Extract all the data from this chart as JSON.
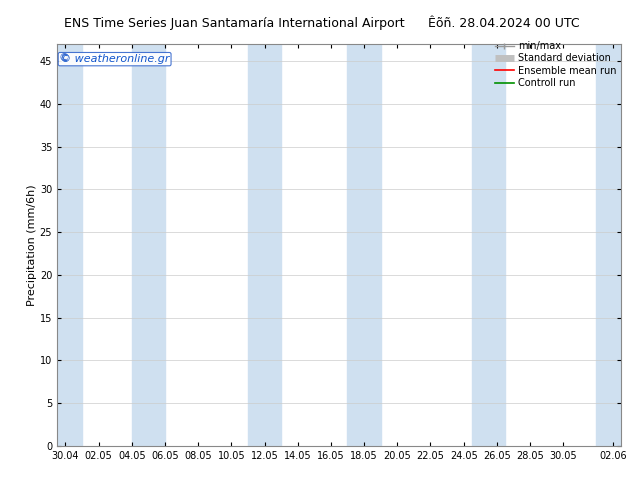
{
  "title_left": "ENS Time Series Juan Santamaría International Airport",
  "title_right": "Êõñ. 28.04.2024 00 UTC",
  "ylabel": "Precipitation (mm/6h)",
  "ylim": [
    0,
    47
  ],
  "yticks": [
    0,
    5,
    10,
    15,
    20,
    25,
    30,
    35,
    40,
    45
  ],
  "xtick_labels": [
    "30.04",
    "02.05",
    "04.05",
    "06.05",
    "08.05",
    "10.05",
    "12.05",
    "14.05",
    "16.05",
    "18.05",
    "20.05",
    "22.05",
    "24.05",
    "26.05",
    "28.05",
    "30.05",
    "02.06"
  ],
  "xtick_positions": [
    0,
    2,
    4,
    6,
    8,
    10,
    12,
    14,
    16,
    18,
    20,
    22,
    24,
    26,
    28,
    30,
    33
  ],
  "shaded_bands": [
    [
      -0.5,
      1
    ],
    [
      4,
      6
    ],
    [
      11,
      13
    ],
    [
      17,
      19
    ],
    [
      24.5,
      26.5
    ],
    [
      32,
      33.5
    ]
  ],
  "band_color": "#cfe0f0",
  "background_color": "#ffffff",
  "grid_color": "#cccccc",
  "legend_entries": [
    "min/max",
    "Standard deviation",
    "Ensemble mean run",
    "Controll run"
  ],
  "minmax_color": "#999999",
  "stddev_color": "#c0c0c0",
  "mean_color": "#ff0000",
  "control_color": "#009000",
  "watermark": "© weatheronline.gr",
  "title_fontsize": 9,
  "ylabel_fontsize": 8,
  "tick_fontsize": 7,
  "legend_fontsize": 7,
  "xlim": [
    -0.5,
    33.5
  ]
}
